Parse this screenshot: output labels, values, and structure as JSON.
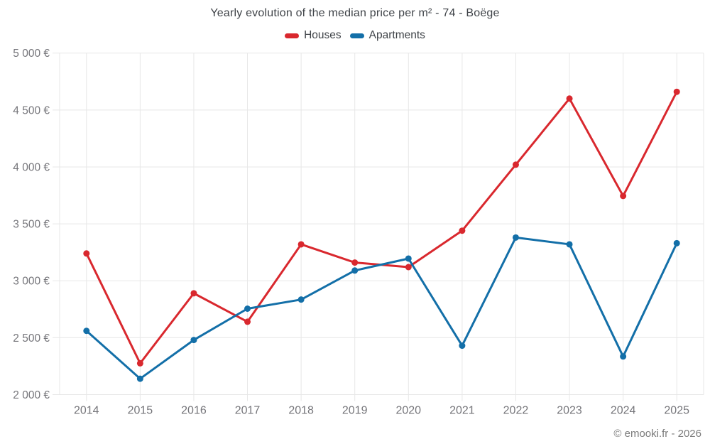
{
  "title": "Yearly evolution of the median price per m² - 74 - Boëge",
  "footer": "© emooki.fr - 2026",
  "legend": {
    "items": [
      {
        "label": "Houses",
        "color": "#d9282e"
      },
      {
        "label": "Apartments",
        "color": "#136fa8"
      }
    ]
  },
  "chart_data": {
    "type": "line",
    "title": "Yearly evolution of the median price per m² - 74 - Boëge",
    "categories": [
      "2014",
      "2015",
      "2016",
      "2017",
      "2018",
      "2019",
      "2020",
      "2021",
      "2022",
      "2023",
      "2024",
      "2025"
    ],
    "series": [
      {
        "name": "Houses",
        "color": "#d9282e",
        "values": [
          3240,
          2275,
          2890,
          2640,
          3320,
          3160,
          3120,
          3440,
          4020,
          4600,
          3745,
          4660
        ]
      },
      {
        "name": "Apartments",
        "color": "#136fa8",
        "values": [
          2560,
          2140,
          2480,
          2755,
          2835,
          3090,
          3195,
          2430,
          3380,
          3320,
          2335,
          3330
        ]
      }
    ],
    "ylim": [
      2000,
      5000
    ],
    "ytick_step": 500,
    "ytick_labels": [
      "2 000 €",
      "2 500 €",
      "3 000 €",
      "3 500 €",
      "4 000 €",
      "4 500 €",
      "5 000 €"
    ],
    "currency_suffix": "€",
    "grid": true,
    "legend_position": "top",
    "xlabel": "",
    "ylabel": ""
  }
}
